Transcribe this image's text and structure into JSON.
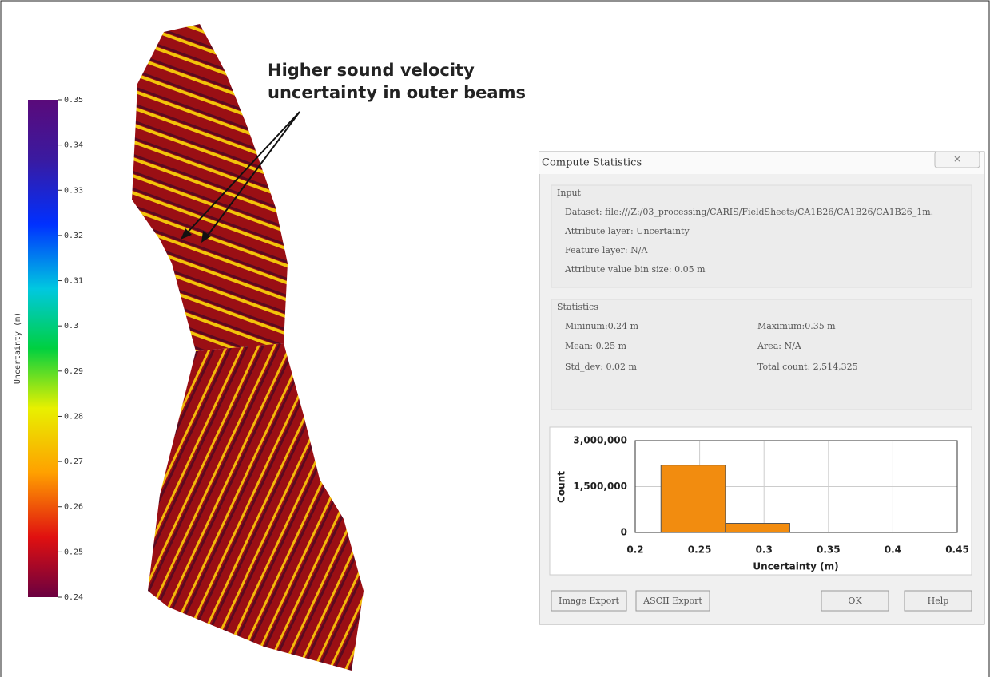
{
  "colorbar": {
    "label": "Uncertainty (m)",
    "lim": [
      0.24,
      0.35
    ],
    "ticks": [
      0.35,
      0.34,
      0.33,
      0.32,
      0.31,
      0.3,
      0.29,
      0.28,
      0.27,
      0.26,
      0.25,
      0.24
    ]
  },
  "annotation": [
    "Higher sound velocity",
    "uncertainty in outer beams"
  ],
  "dialog": {
    "title": "Compute Statistics",
    "input": {
      "heading": "Input",
      "dataset": "Dataset:  file:///Z:/03_processing/CARIS/FieldSheets/CA1B26/CA1B26/CA1B26_1m.",
      "attribute_layer": "Attribute layer: Uncertainty",
      "feature_layer": "Feature layer: N/A",
      "bin_size": "Attribute value bin size: 0.05 m"
    },
    "statistics": {
      "heading": "Statistics",
      "minimum": "Mininum:0.24 m",
      "maximum": "Maximum:0.35 m",
      "mean": "Mean: 0.25 m",
      "area": "Area: N/A",
      "std_dev": "Std_dev: 0.02 m",
      "total_count": "Total count: 2,514,325"
    },
    "buttons": [
      "Image Export",
      "ASCII Export",
      "OK",
      "Help"
    ]
  },
  "chart_data": {
    "type": "histogram",
    "x_label": "Uncertainty (m)",
    "y_label": "Count",
    "bins": [
      0.22,
      0.27,
      0.32
    ],
    "values": [
      2200000,
      300000
    ],
    "color": "#f28c0f",
    "xlim": [
      0.2,
      0.45
    ],
    "xticks": [
      0.2,
      0.25,
      0.3,
      0.35,
      0.4,
      0.45
    ],
    "ylim": [
      0,
      3000000
    ],
    "yticks": [
      {
        "value": 0,
        "label": "0"
      },
      {
        "value": 1500000,
        "label": "1,500,000"
      },
      {
        "value": 3000000,
        "label": "3,000,000"
      }
    ],
    "grid": true
  }
}
